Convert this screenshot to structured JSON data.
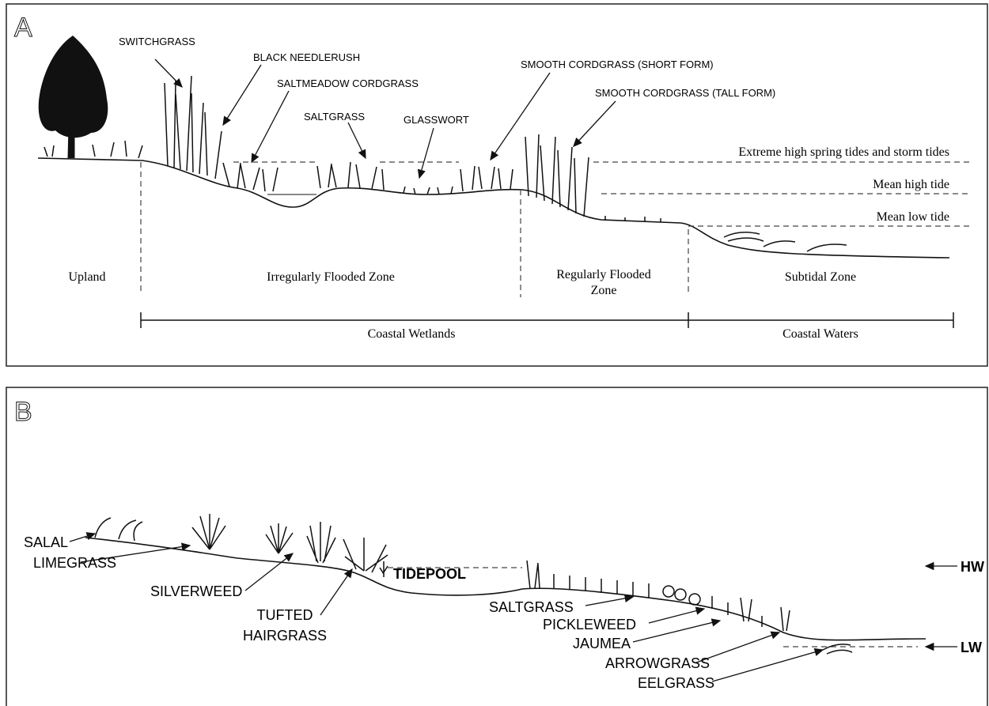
{
  "panel_a": {
    "label": "A",
    "plants": [
      "SWITCHGRASS",
      "BLACK NEEDLERUSH",
      "SALTMEADOW CORDGRASS",
      "SALTGRASS",
      "GLASSWORT",
      "SMOOTH CORDGRASS (SHORT FORM)",
      "SMOOTH CORDGRASS (TALL FORM)"
    ],
    "tides": [
      "Extreme  high spring tides and storm tides",
      "Mean high tide",
      "Mean low tide"
    ],
    "zones": {
      "upland": "Upland",
      "irregular": "Irregularly Flooded Zone",
      "regular": [
        "Regularly Flooded",
        "Zone"
      ],
      "subtidal": "Subtidal Zone"
    },
    "regions": [
      "Coastal Wetlands",
      "Coastal Waters"
    ]
  },
  "panel_b": {
    "label": "B",
    "plants": [
      "SALAL",
      "LIMEGRASS",
      "SILVERWEED",
      [
        "TUFTED",
        "HAIRGRASS"
      ],
      "SALTGRASS",
      "PICKLEWEED",
      "JAUMEA",
      "ARROWGRASS",
      "EELGRASS"
    ],
    "tidepool": "TIDEPOOL",
    "hw": "HW",
    "lw": "LW"
  }
}
